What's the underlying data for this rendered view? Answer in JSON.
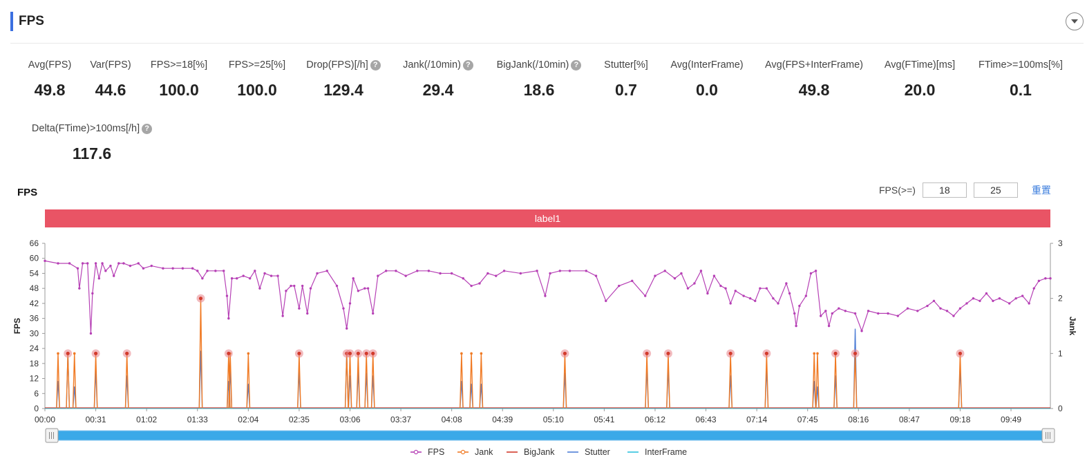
{
  "section": {
    "title": "FPS"
  },
  "metrics": [
    {
      "label": "Avg(FPS)",
      "value": "49.8",
      "help": false
    },
    {
      "label": "Var(FPS)",
      "value": "44.6",
      "help": false
    },
    {
      "label": "FPS>=18[%]",
      "value": "100.0",
      "help": false
    },
    {
      "label": "FPS>=25[%]",
      "value": "100.0",
      "help": false
    },
    {
      "label": "Drop(FPS)[/h]",
      "value": "129.4",
      "help": true
    },
    {
      "label": "Jank(/10min)",
      "value": "29.4",
      "help": true
    },
    {
      "label": "BigJank(/10min)",
      "value": "18.6",
      "help": true
    },
    {
      "label": "Stutter[%]",
      "value": "0.7",
      "help": false
    },
    {
      "label": "Avg(InterFrame)",
      "value": "0.0",
      "help": false
    },
    {
      "label": "Avg(FPS+InterFrame)",
      "value": "49.8",
      "help": false
    },
    {
      "label": "Avg(FTime)[ms]",
      "value": "20.0",
      "help": false
    },
    {
      "label": "FTime>=100ms[%]",
      "value": "0.1",
      "help": false
    },
    {
      "label": "Delta(FTime)>100ms[/h]",
      "value": "117.6",
      "help": true
    }
  ],
  "chart_controls": {
    "fps_label": "FPS(>=)",
    "threshold_low": "18",
    "threshold_high": "25",
    "reset_label": "重置"
  },
  "chart_data": {
    "type": "line",
    "title": "FPS",
    "band_label": "label1",
    "ylabel": "FPS",
    "y2label": "Jank",
    "ylim": [
      0,
      66
    ],
    "y_ticks": [
      0,
      6,
      12,
      18,
      24,
      30,
      36,
      42,
      48,
      54,
      60,
      66
    ],
    "y2lim": [
      0,
      3
    ],
    "y2_ticks": [
      0,
      1,
      2,
      3
    ],
    "x_tick_labels": [
      "00:00",
      "00:31",
      "01:02",
      "01:33",
      "02:04",
      "02:35",
      "03:06",
      "03:37",
      "04:08",
      "04:39",
      "05:10",
      "05:41",
      "06:12",
      "06:43",
      "07:14",
      "07:45",
      "08:16",
      "08:47",
      "09:18",
      "09:49"
    ],
    "x_tick_seconds": [
      0,
      31,
      62,
      93,
      124,
      155,
      186,
      217,
      248,
      279,
      310,
      341,
      372,
      403,
      434,
      465,
      496,
      527,
      558,
      589
    ],
    "x_range_seconds": [
      0,
      613
    ],
    "fps_series": [
      [
        0,
        59
      ],
      [
        8,
        58
      ],
      [
        15,
        58
      ],
      [
        20,
        56
      ],
      [
        21,
        48
      ],
      [
        23,
        58
      ],
      [
        26,
        58
      ],
      [
        28,
        30
      ],
      [
        29,
        46
      ],
      [
        31,
        58
      ],
      [
        33,
        52
      ],
      [
        35,
        58
      ],
      [
        37,
        55
      ],
      [
        40,
        57
      ],
      [
        42,
        53
      ],
      [
        45,
        58
      ],
      [
        48,
        58
      ],
      [
        52,
        57
      ],
      [
        57,
        58
      ],
      [
        60,
        56
      ],
      [
        65,
        57
      ],
      [
        72,
        56
      ],
      [
        78,
        56
      ],
      [
        84,
        56
      ],
      [
        90,
        56
      ],
      [
        93,
        55
      ],
      [
        96,
        52
      ],
      [
        99,
        55
      ],
      [
        104,
        55
      ],
      [
        109,
        55
      ],
      [
        111,
        45
      ],
      [
        112,
        36
      ],
      [
        114,
        52
      ],
      [
        117,
        52
      ],
      [
        121,
        53
      ],
      [
        125,
        52
      ],
      [
        128,
        55
      ],
      [
        131,
        48
      ],
      [
        134,
        54
      ],
      [
        138,
        53
      ],
      [
        142,
        53
      ],
      [
        145,
        37
      ],
      [
        147,
        47
      ],
      [
        150,
        49
      ],
      [
        152,
        49
      ],
      [
        155,
        40
      ],
      [
        157,
        49
      ],
      [
        160,
        38
      ],
      [
        162,
        48
      ],
      [
        166,
        54
      ],
      [
        172,
        55
      ],
      [
        178,
        49
      ],
      [
        182,
        40
      ],
      [
        184,
        32
      ],
      [
        186,
        42
      ],
      [
        188,
        52
      ],
      [
        191,
        47
      ],
      [
        195,
        48
      ],
      [
        197,
        48
      ],
      [
        200,
        38
      ],
      [
        203,
        53
      ],
      [
        208,
        55
      ],
      [
        214,
        55
      ],
      [
        220,
        53
      ],
      [
        227,
        55
      ],
      [
        234,
        55
      ],
      [
        241,
        54
      ],
      [
        248,
        54
      ],
      [
        255,
        52
      ],
      [
        260,
        49
      ],
      [
        265,
        50
      ],
      [
        270,
        54
      ],
      [
        275,
        53
      ],
      [
        280,
        55
      ],
      [
        290,
        54
      ],
      [
        300,
        55
      ],
      [
        305,
        45
      ],
      [
        308,
        54
      ],
      [
        314,
        55
      ],
      [
        320,
        55
      ],
      [
        330,
        55
      ],
      [
        336,
        53
      ],
      [
        342,
        43
      ],
      [
        350,
        49
      ],
      [
        358,
        51
      ],
      [
        366,
        45
      ],
      [
        372,
        53
      ],
      [
        378,
        55
      ],
      [
        384,
        52
      ],
      [
        388,
        54
      ],
      [
        392,
        48
      ],
      [
        396,
        50
      ],
      [
        400,
        55
      ],
      [
        404,
        46
      ],
      [
        408,
        53
      ],
      [
        412,
        49
      ],
      [
        415,
        48
      ],
      [
        418,
        42
      ],
      [
        421,
        47
      ],
      [
        426,
        45
      ],
      [
        430,
        44
      ],
      [
        433,
        43
      ],
      [
        436,
        48
      ],
      [
        440,
        48
      ],
      [
        444,
        44
      ],
      [
        447,
        42
      ],
      [
        452,
        50
      ],
      [
        454,
        46
      ],
      [
        457,
        38
      ],
      [
        458,
        33
      ],
      [
        460,
        41
      ],
      [
        464,
        45
      ],
      [
        467,
        54
      ],
      [
        470,
        55
      ],
      [
        473,
        37
      ],
      [
        476,
        39
      ],
      [
        478,
        33
      ],
      [
        480,
        38
      ],
      [
        484,
        40
      ],
      [
        488,
        39
      ],
      [
        494,
        38
      ],
      [
        498,
        31
      ],
      [
        502,
        39
      ],
      [
        508,
        38
      ],
      [
        514,
        38
      ],
      [
        520,
        37
      ],
      [
        526,
        40
      ],
      [
        532,
        39
      ],
      [
        538,
        41
      ],
      [
        542,
        43
      ],
      [
        546,
        40
      ],
      [
        550,
        39
      ],
      [
        554,
        37
      ],
      [
        558,
        40
      ],
      [
        562,
        42
      ],
      [
        566,
        44
      ],
      [
        570,
        43
      ],
      [
        574,
        46
      ],
      [
        578,
        43
      ],
      [
        582,
        44
      ],
      [
        588,
        42
      ],
      [
        592,
        44
      ],
      [
        596,
        45
      ],
      [
        600,
        42
      ],
      [
        603,
        48
      ],
      [
        606,
        51
      ],
      [
        610,
        52
      ],
      [
        613,
        52
      ]
    ],
    "jank_events": [
      {
        "t": 8,
        "value": 1
      },
      {
        "t": 14,
        "value": 1
      },
      {
        "t": 18,
        "value": 1
      },
      {
        "t": 31,
        "value": 1
      },
      {
        "t": 50,
        "value": 1
      },
      {
        "t": 95,
        "value": 2
      },
      {
        "t": 112,
        "value": 1
      },
      {
        "t": 113,
        "value": 1
      },
      {
        "t": 124,
        "value": 1
      },
      {
        "t": 155,
        "value": 1
      },
      {
        "t": 184,
        "value": 1
      },
      {
        "t": 186,
        "value": 1
      },
      {
        "t": 191,
        "value": 1
      },
      {
        "t": 196,
        "value": 1
      },
      {
        "t": 200,
        "value": 1
      },
      {
        "t": 254,
        "value": 1
      },
      {
        "t": 260,
        "value": 1
      },
      {
        "t": 266,
        "value": 1
      },
      {
        "t": 317,
        "value": 1
      },
      {
        "t": 367,
        "value": 1
      },
      {
        "t": 380,
        "value": 1
      },
      {
        "t": 418,
        "value": 1
      },
      {
        "t": 440,
        "value": 1
      },
      {
        "t": 469,
        "value": 1
      },
      {
        "t": 471,
        "value": 1
      },
      {
        "t": 482,
        "value": 1
      },
      {
        "t": 494,
        "value": 1
      },
      {
        "t": 558,
        "value": 1
      }
    ],
    "stutter_events": [
      {
        "t": 8,
        "value": 0.5
      },
      {
        "t": 14,
        "value": 1
      },
      {
        "t": 18,
        "value": 0.4
      },
      {
        "t": 31,
        "value": 0.7
      },
      {
        "t": 50,
        "value": 0.6
      },
      {
        "t": 95,
        "value": 1.05
      },
      {
        "t": 112,
        "value": 0.5
      },
      {
        "t": 113,
        "value": 0.7
      },
      {
        "t": 124,
        "value": 0.45
      },
      {
        "t": 155,
        "value": 0.7
      },
      {
        "t": 184,
        "value": 1
      },
      {
        "t": 186,
        "value": 0.6
      },
      {
        "t": 191,
        "value": 0.7
      },
      {
        "t": 196,
        "value": 0.65
      },
      {
        "t": 200,
        "value": 0.6
      },
      {
        "t": 254,
        "value": 0.5
      },
      {
        "t": 260,
        "value": 0.45
      },
      {
        "t": 266,
        "value": 0.45
      },
      {
        "t": 317,
        "value": 0.65
      },
      {
        "t": 367,
        "value": 0.75
      },
      {
        "t": 380,
        "value": 0.75
      },
      {
        "t": 418,
        "value": 0.6
      },
      {
        "t": 440,
        "value": 0.75
      },
      {
        "t": 469,
        "value": 0.5
      },
      {
        "t": 471,
        "value": 0.4
      },
      {
        "t": 482,
        "value": 0.6
      },
      {
        "t": 494,
        "value": 1.45
      },
      {
        "t": 558,
        "value": 0.75
      }
    ],
    "big_jank_times": [
      14,
      31,
      50,
      95,
      112,
      155,
      184,
      186,
      191,
      196,
      200,
      317,
      367,
      380,
      418,
      440,
      482,
      494,
      558
    ],
    "legend": [
      {
        "name": "FPS",
        "color": "#b640b5"
      },
      {
        "name": "Jank",
        "color": "#f07a24"
      },
      {
        "name": "BigJank",
        "color": "#d23a2c"
      },
      {
        "name": "Stutter",
        "color": "#4f7fd6"
      },
      {
        "name": "InterFrame",
        "color": "#2fc2de"
      }
    ],
    "grid": false,
    "legend_position": "bottom"
  }
}
